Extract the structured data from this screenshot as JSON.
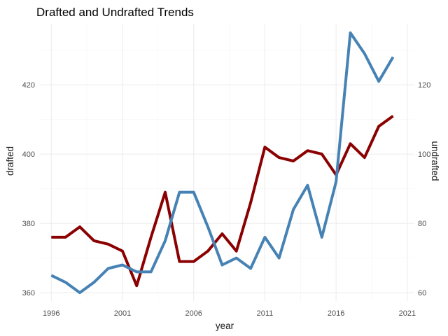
{
  "chart_data": {
    "type": "line",
    "title": "Drafted and Undrafted Trends",
    "xlabel": "year",
    "ylabel": "drafted",
    "y2label": "undrafted",
    "x": [
      1996,
      1997,
      1998,
      1999,
      2000,
      2001,
      2002,
      2003,
      2004,
      2005,
      2006,
      2007,
      2008,
      2009,
      2010,
      2011,
      2012,
      2013,
      2014,
      2015,
      2016,
      2017,
      2018,
      2019,
      2020
    ],
    "series": [
      {
        "name": "drafted",
        "axis": "left",
        "color": "#8b0000",
        "values": [
          376,
          376,
          379,
          375,
          374,
          372,
          362,
          376,
          389,
          369,
          369,
          372,
          377,
          372,
          386,
          402,
          399,
          398,
          401,
          400,
          394,
          403,
          399,
          408,
          411
        ]
      },
      {
        "name": "undrafted",
        "axis": "right",
        "color": "#4682b4",
        "values": [
          65,
          63,
          60,
          63,
          67,
          68,
          66,
          66,
          75,
          89,
          89,
          79,
          68,
          70,
          67,
          76,
          70,
          84,
          91,
          76,
          92,
          135,
          129,
          121,
          128
        ]
      }
    ],
    "xlim": [
      1995.2,
      2021.5
    ],
    "xticks": [
      1996,
      2001,
      2006,
      2011,
      2016,
      2021
    ],
    "ylim": [
      357.6,
      437.6
    ],
    "yticks": [
      360,
      380,
      400,
      420
    ],
    "y2lim": [
      57.6,
      137.6
    ],
    "y2ticks": [
      60,
      80,
      100,
      120
    ],
    "grid": true
  }
}
